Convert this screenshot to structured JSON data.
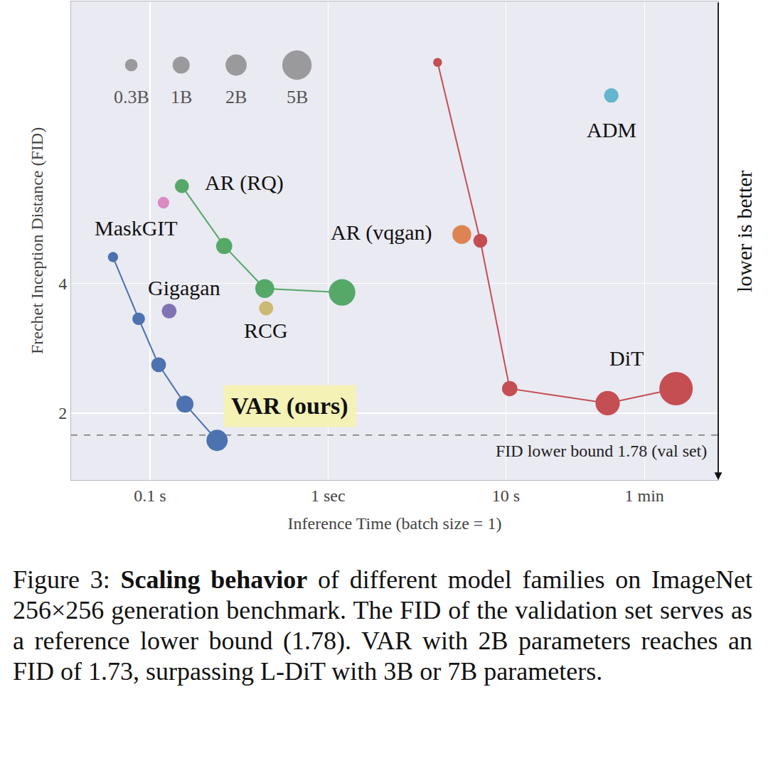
{
  "chart_data": {
    "type": "scatter",
    "x_label": "Inference Time (batch size = 1)",
    "y_label": "Frechet Inception Distance (FID)",
    "log": true,
    "grid": true,
    "xlim": [
      0.036,
      156
    ],
    "ylim": [
      1.4,
      18
    ],
    "xticks": [
      {
        "value": 0.1,
        "label": "0.1 s"
      },
      {
        "value": 1,
        "label": "1 sec"
      },
      {
        "value": 10,
        "label": "10 s"
      },
      {
        "value": 60,
        "label": "1 min"
      }
    ],
    "yticks": [
      2,
      4
    ],
    "lower_bound": 1.78,
    "annotations": [
      {
        "text": "FID lower bound 1.78 (val set)"
      },
      {
        "text": "lower is better"
      }
    ],
    "size_legend": [
      {
        "value": 0.3,
        "label": "0.3B"
      },
      {
        "value": 1,
        "label": "1B"
      },
      {
        "value": 2,
        "label": "2B"
      },
      {
        "value": 5,
        "label": "5B"
      }
    ],
    "series": [
      {
        "name": "VAR (ours)",
        "color": "#4c72b0",
        "type": "line",
        "x": [
          0.0619,
          0.0863,
          0.1117,
          0.157,
          0.238
        ],
        "values": [
          4.6,
          3.31,
          2.59,
          2.1,
          1.73
        ],
        "sizes": [
          0.1,
          0.3,
          0.6,
          1.0,
          2.0
        ]
      },
      {
        "name": "AR (RQ)",
        "color": "#55a868",
        "type": "line",
        "x": [
          0.151,
          0.261,
          0.441,
          1.2
        ],
        "values": [
          6.72,
          4.88,
          3.89,
          3.81
        ],
        "sizes": [
          0.48,
          0.82,
          1.4,
          3.8
        ]
      },
      {
        "name": "MaskGIT",
        "color": "#da8bc3",
        "type": "scatter",
        "x": [
          0.119
        ],
        "values": [
          6.15
        ],
        "sizes": [
          0.2
        ]
      },
      {
        "name": "Gigagan",
        "color": "#8172b3",
        "type": "scatter",
        "x": [
          0.128
        ],
        "values": [
          3.45
        ],
        "sizes": [
          0.6
        ]
      },
      {
        "name": "RCG",
        "color": "#ccb974",
        "type": "scatter",
        "x": [
          0.449
        ],
        "values": [
          3.5
        ],
        "sizes": [
          0.5
        ]
      },
      {
        "name": "AR (vqgan)",
        "color": "#dd8452",
        "type": "scatter",
        "x": [
          5.65
        ],
        "values": [
          5.19
        ],
        "sizes": [
          1.4
        ]
      },
      {
        "name": "ADM",
        "color": "#64b5cd",
        "type": "scatter",
        "x": [
          39.1
        ],
        "values": [
          10.9
        ],
        "sizes": [
          0.55
        ]
      },
      {
        "name": "DiT",
        "color": "#c44e52",
        "type": "line",
        "x": [
          4.13,
          7.18,
          10.5,
          37.3,
          90.4
        ],
        "values": [
          13.0,
          5.02,
          2.28,
          2.11,
          2.28
        ],
        "sizes": [
          0.03,
          0.46,
          0.68,
          3,
          7
        ]
      }
    ],
    "caption": {
      "prefix": "Figure 3:",
      "bold": "Scaling behavior",
      "text": "of different model families on ImageNet 256×256 generation benchmark. The FID of the validation set serves as a reference lower bound (1.78). VAR with 2B parameters reaches an FID of 1.73, surpassing L-DiT with 3B or 7B parameters."
    }
  }
}
